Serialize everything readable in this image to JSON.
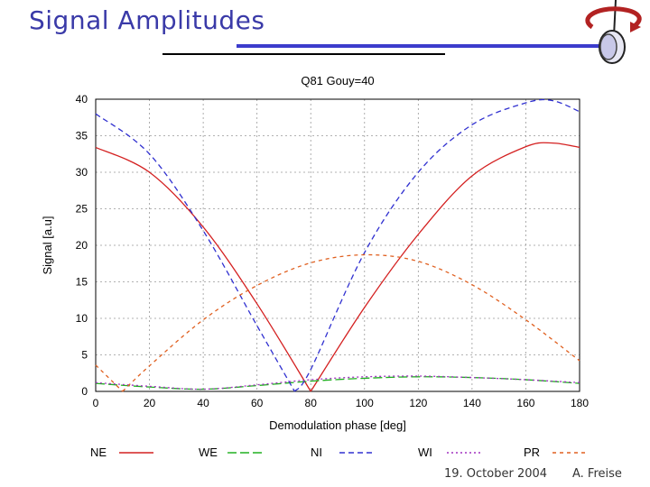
{
  "slide": {
    "title": "Signal Amplitudes",
    "footer_date": "19. October 2004",
    "footer_author": "A. Freise"
  },
  "colors": {
    "title": "#3a3aa8",
    "rule_blue": "#3c3ccc",
    "logo_red": "#b22222",
    "logo_blue": "#3c3ccc"
  },
  "chart_data": {
    "type": "line",
    "title": "Q81 Gouy=40",
    "xlabel": "Demodulation phase [deg]",
    "ylabel": "Signal [a.u]",
    "xlim": [
      0,
      180
    ],
    "ylim": [
      0,
      40
    ],
    "xticks": [
      0,
      20,
      40,
      60,
      80,
      100,
      120,
      140,
      160,
      180
    ],
    "yticks": [
      0,
      5,
      10,
      15,
      20,
      25,
      30,
      35,
      40
    ],
    "grid": true,
    "legend_position": "bottom",
    "x": [
      0,
      20,
      40,
      60,
      80,
      100,
      120,
      140,
      160,
      180
    ],
    "series": [
      {
        "name": "NE",
        "color": "#d42020",
        "dash": "solid",
        "x": [
          0,
          20,
          40,
          60,
          80,
          100,
          120,
          140,
          160,
          170,
          180
        ],
        "values": [
          33.4,
          30.0,
          22.5,
          12.0,
          0.0,
          11.5,
          21.5,
          29.5,
          33.5,
          34.0,
          33.4
        ]
      },
      {
        "name": "WE",
        "color": "#20b020",
        "dash": "longdash",
        "x": [
          0,
          20,
          40,
          60,
          80,
          100,
          120,
          140,
          160,
          180
        ],
        "values": [
          1.1,
          0.6,
          0.3,
          0.8,
          1.4,
          1.8,
          2.0,
          1.9,
          1.6,
          1.1
        ]
      },
      {
        "name": "NI",
        "color": "#3030d0",
        "dash": "dash",
        "x": [
          0,
          20,
          40,
          60,
          74,
          80,
          100,
          120,
          140,
          160,
          170,
          180
        ],
        "values": [
          38.0,
          32.5,
          22.0,
          9.0,
          0.0,
          3.0,
          19.0,
          30.0,
          36.5,
          39.5,
          39.8,
          38.3
        ]
      },
      {
        "name": "WI",
        "color": "#a030c0",
        "dash": "dot",
        "x": [
          0,
          20,
          40,
          60,
          80,
          100,
          120,
          140,
          160,
          180
        ],
        "values": [
          1.2,
          0.7,
          0.3,
          0.9,
          1.6,
          2.0,
          2.1,
          1.9,
          1.6,
          1.2
        ]
      },
      {
        "name": "PR",
        "color": "#e06020",
        "dash": "shortdash",
        "x": [
          0,
          10,
          20,
          40,
          60,
          80,
          100,
          120,
          140,
          160,
          180
        ],
        "values": [
          3.6,
          0.0,
          3.5,
          9.8,
          14.5,
          17.6,
          18.7,
          17.8,
          14.6,
          9.8,
          4.2
        ]
      }
    ]
  }
}
